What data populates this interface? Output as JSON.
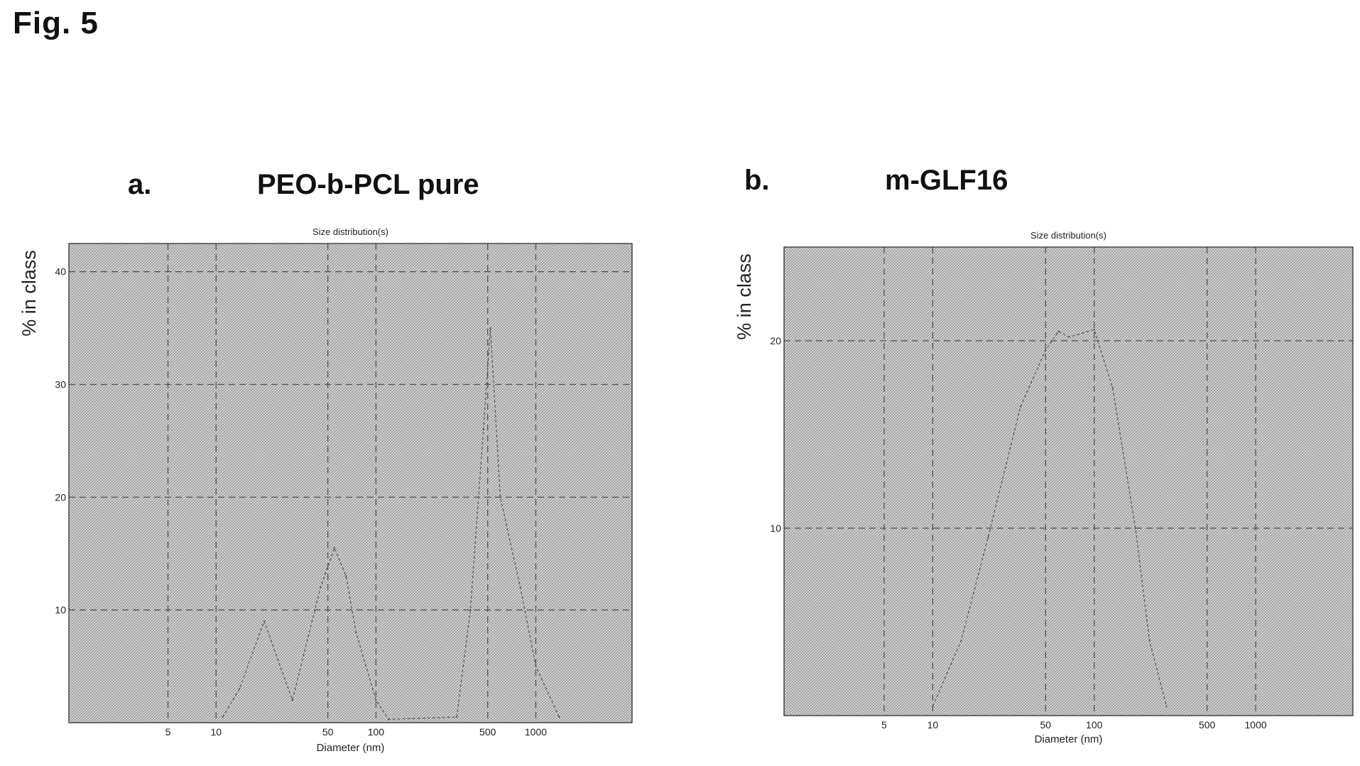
{
  "figure": {
    "label": "Fig. 5"
  },
  "colors": {
    "plot_fill": "#d9d9d9",
    "hatch": "#8a8a8a",
    "grid": "#555555",
    "curve": "#555555",
    "frame": "#222222"
  },
  "chart_data": [
    {
      "type": "line",
      "panel_letter": "a.",
      "panel_title": "PEO-b-PCL pure",
      "title": "Size distribution(s)",
      "xlabel": "Diameter (nm)",
      "ylabel": "% in class",
      "x_scale": "log",
      "xlim": [
        1.2,
        4000
      ],
      "ylim": [
        0,
        42.5
      ],
      "x_ticks": [
        5,
        10,
        50,
        100,
        500,
        1000
      ],
      "y_ticks": [
        10,
        20,
        30,
        40
      ],
      "grid": true,
      "x": [
        11,
        14,
        20,
        30,
        45,
        55,
        65,
        75,
        100,
        120,
        320,
        390,
        470,
        520,
        600,
        800,
        1000,
        1400
      ],
      "y": [
        0.5,
        3,
        9,
        2,
        12,
        15.5,
        13,
        8,
        2,
        0.3,
        0.5,
        10,
        26,
        35,
        20,
        12,
        5,
        0.5
      ]
    },
    {
      "type": "line",
      "panel_letter": "b.",
      "panel_title": "m-GLF16",
      "title": "Size distribution(s)",
      "xlabel": "Diameter (nm)",
      "ylabel": "% in class",
      "x_scale": "log",
      "xlim": [
        1.2,
        4000
      ],
      "ylim": [
        0,
        25
      ],
      "x_ticks": [
        5,
        10,
        50,
        100,
        500,
        1000
      ],
      "y_ticks": [
        10,
        20
      ],
      "grid": true,
      "x": [
        10,
        15,
        22,
        35,
        50,
        60,
        70,
        100,
        130,
        180,
        220,
        280
      ],
      "y": [
        0.5,
        4,
        9.5,
        16.5,
        19.5,
        20.5,
        20.2,
        20.6,
        17.5,
        10,
        4,
        0.5
      ]
    }
  ]
}
